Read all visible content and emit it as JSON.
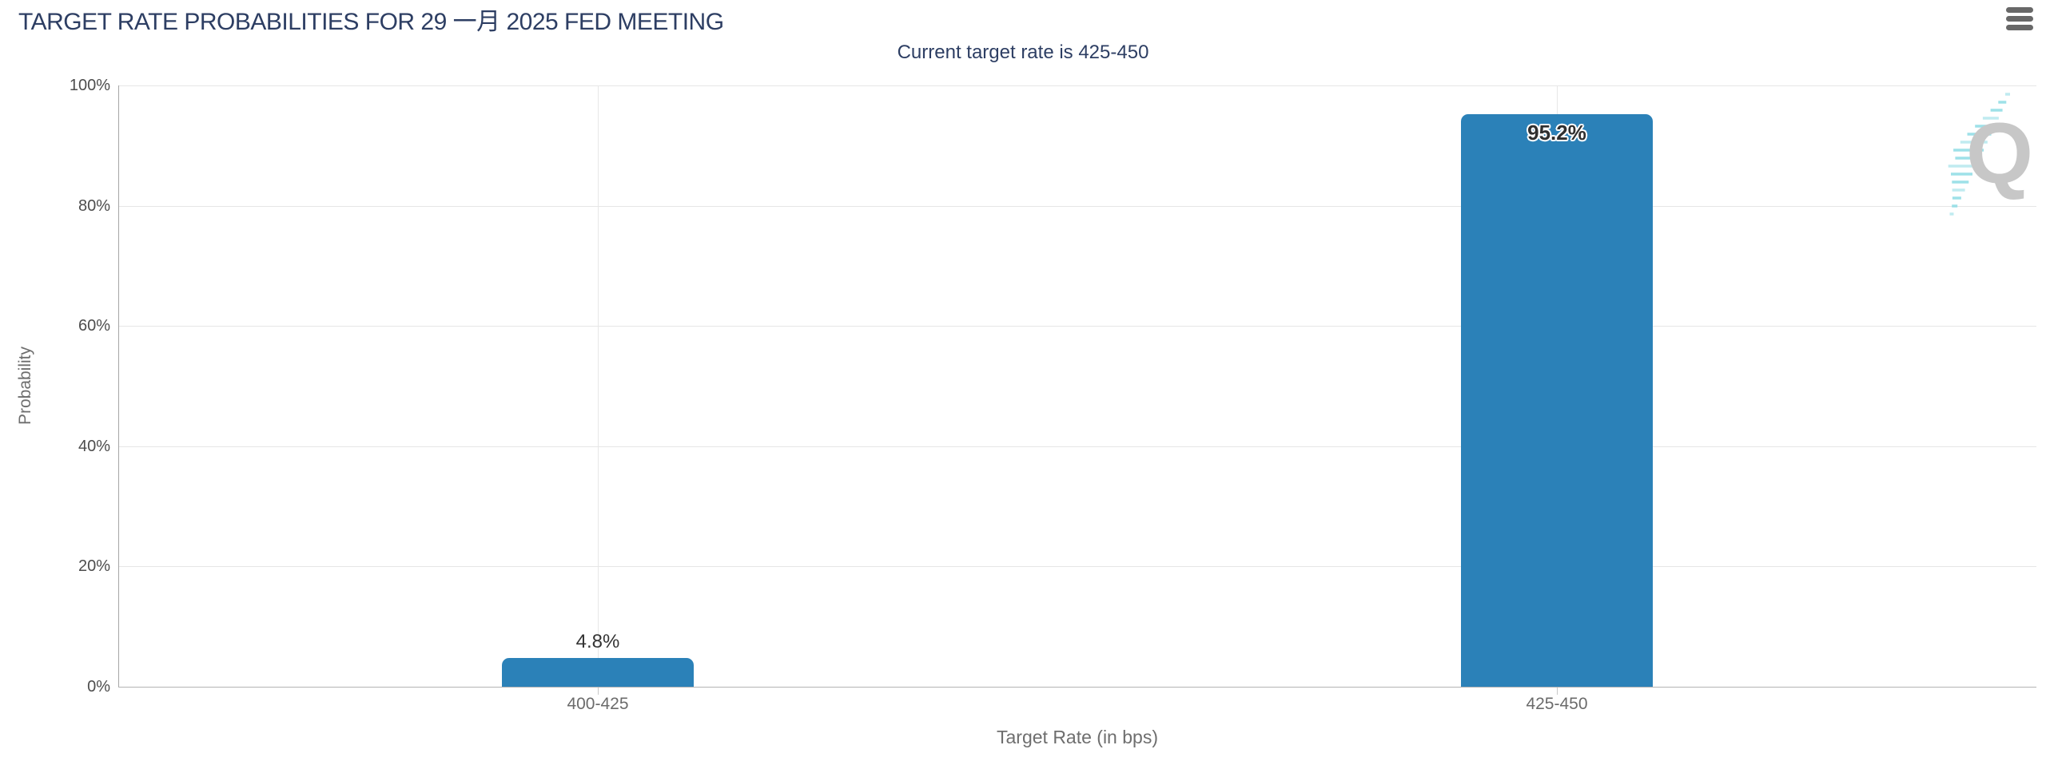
{
  "header": {
    "title": "TARGET RATE PROBABILITIES FOR 29 一月 2025 FED MEETING",
    "menu_icon": "hamburger-menu-icon"
  },
  "chart_data": {
    "type": "bar",
    "title": "TARGET RATE PROBABILITIES FOR 29 一月 2025 FED MEETING",
    "subtitle": "Current target rate is 425-450",
    "categories": [
      "400-425",
      "425-450"
    ],
    "values": [
      4.8,
      95.2
    ],
    "value_labels": [
      "4.8%",
      "95.2%"
    ],
    "xlabel": "Target Rate (in bps)",
    "ylabel": "Probability",
    "ylim": [
      0,
      100
    ],
    "yticks": [
      0,
      20,
      40,
      60,
      80,
      100
    ],
    "ytick_labels": [
      "0%",
      "20%",
      "40%",
      "60%",
      "80%",
      "100%"
    ],
    "grid": true,
    "legend": "none",
    "bar_color": "#2b81b8"
  },
  "colors": {
    "title_navy": "#2d3e63",
    "bar_blue": "#2b81b8",
    "gridline": "#e6e6e6",
    "axis_text": "#6b6b6b",
    "watermark_gray": "#c7c7c7",
    "watermark_teal": "#8edce4"
  },
  "watermark": {
    "letter": "Q"
  }
}
